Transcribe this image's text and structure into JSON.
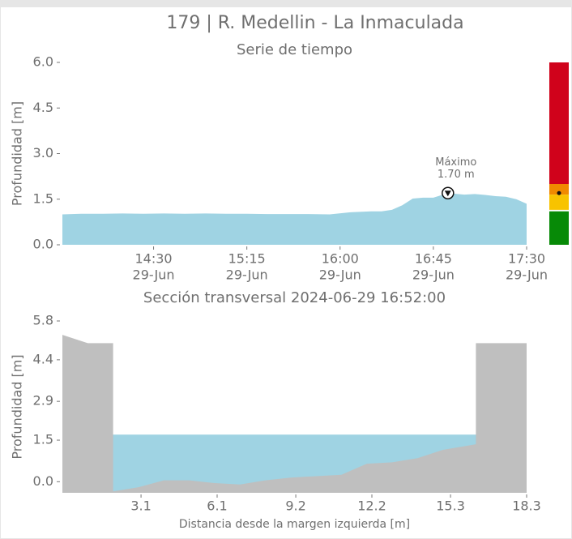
{
  "page_title": "179 | R. Medellin - La Inmaculada",
  "chart_data": [
    {
      "type": "area",
      "title": "Serie de tiempo",
      "ylabel": "Profundidad [m]",
      "x": [
        "2024-06-29T13:46",
        "2024-06-29T13:55",
        "2024-06-29T14:05",
        "2024-06-29T14:15",
        "2024-06-29T14:25",
        "2024-06-29T14:35",
        "2024-06-29T14:45",
        "2024-06-29T14:55",
        "2024-06-29T15:05",
        "2024-06-29T15:15",
        "2024-06-29T15:25",
        "2024-06-29T15:35",
        "2024-06-29T15:45",
        "2024-06-29T15:55",
        "2024-06-29T16:05",
        "2024-06-29T16:15",
        "2024-06-29T16:20",
        "2024-06-29T16:25",
        "2024-06-29T16:30",
        "2024-06-29T16:35",
        "2024-06-29T16:40",
        "2024-06-29T16:45",
        "2024-06-29T16:52",
        "2024-06-29T17:00",
        "2024-06-29T17:05",
        "2024-06-29T17:10",
        "2024-06-29T17:15",
        "2024-06-29T17:20",
        "2024-06-29T17:25",
        "2024-06-29T17:30"
      ],
      "series": [
        {
          "color": "#9fd3e3",
          "values": [
            1.0,
            1.02,
            1.02,
            1.03,
            1.02,
            1.03,
            1.02,
            1.03,
            1.02,
            1.02,
            1.01,
            1.01,
            1.01,
            1.0,
            1.07,
            1.1,
            1.1,
            1.15,
            1.3,
            1.52,
            1.55,
            1.55,
            1.7,
            1.65,
            1.67,
            1.64,
            1.6,
            1.58,
            1.5,
            1.35
          ]
        }
      ],
      "xlim": [
        "2024-06-29T13:46",
        "2024-06-29T17:30"
      ],
      "xticks": [
        {
          "value": "2024-06-29T14:30",
          "label": [
            "14:30",
            "29-Jun"
          ]
        },
        {
          "value": "2024-06-29T15:15",
          "label": [
            "15:15",
            "29-Jun"
          ]
        },
        {
          "value": "2024-06-29T16:00",
          "label": [
            "16:00",
            "29-Jun"
          ]
        },
        {
          "value": "2024-06-29T16:45",
          "label": [
            "16:45",
            "29-Jun"
          ]
        },
        {
          "value": "2024-06-29T17:30",
          "label": [
            "17:30",
            "29-Jun"
          ]
        }
      ],
      "ylim": [
        0,
        6
      ],
      "yticks": [
        {
          "value": 0,
          "label": "0.0"
        },
        {
          "value": 1.5,
          "label": "1.5"
        },
        {
          "value": 3,
          "label": "3.0"
        },
        {
          "value": 4.5,
          "label": "4.5"
        },
        {
          "value": 6,
          "label": "6.0"
        }
      ],
      "max": {
        "title": "Máximo",
        "x": "2024-06-29T16:52",
        "value": 1.7,
        "label": "1.70 m"
      },
      "level_bands": [
        {
          "color": "#d0021b",
          "from": 2.0,
          "to": 6.0
        },
        {
          "color": "#f08a00",
          "from": 1.65,
          "to": 2.0
        },
        {
          "color": "#f8c300",
          "from": 1.15,
          "to": 1.65
        },
        {
          "color": "#078a07",
          "from": 0,
          "to": 1.1
        }
      ],
      "current_level": 1.7
    },
    {
      "type": "cross_section",
      "title": "Sección transversal 2024-06-29 16:52:00",
      "xlabel": "Distancia desde la margen izquierda [m]",
      "ylabel": "Profundidad [m]",
      "x": [
        0,
        1.0,
        2.0,
        2.0,
        3.0,
        4.0,
        5.0,
        6.0,
        7.0,
        8.0,
        9.0,
        10.0,
        11.0,
        12.0,
        13.0,
        14.0,
        15.0,
        16.3,
        16.3,
        18.3
      ],
      "terrain": [
        5.3,
        5.0,
        5.0,
        -0.35,
        -0.2,
        0.05,
        0.05,
        -0.05,
        -0.1,
        0.05,
        0.15,
        0.2,
        0.25,
        0.65,
        0.7,
        0.85,
        1.15,
        1.35,
        5.0,
        5.0
      ],
      "terrain_color": "#bfbfbf",
      "water_color": "#9fd3e3",
      "water_level": 1.7,
      "xlim": [
        0,
        18.3
      ],
      "xticks": [
        3.1,
        6.1,
        9.2,
        12.2,
        15.3,
        18.3
      ],
      "ylim": [
        -0.4,
        5.8
      ],
      "yticks": [
        {
          "value": 0,
          "label": "0.0"
        },
        1.5,
        2.9,
        4.4,
        5.8
      ]
    }
  ]
}
